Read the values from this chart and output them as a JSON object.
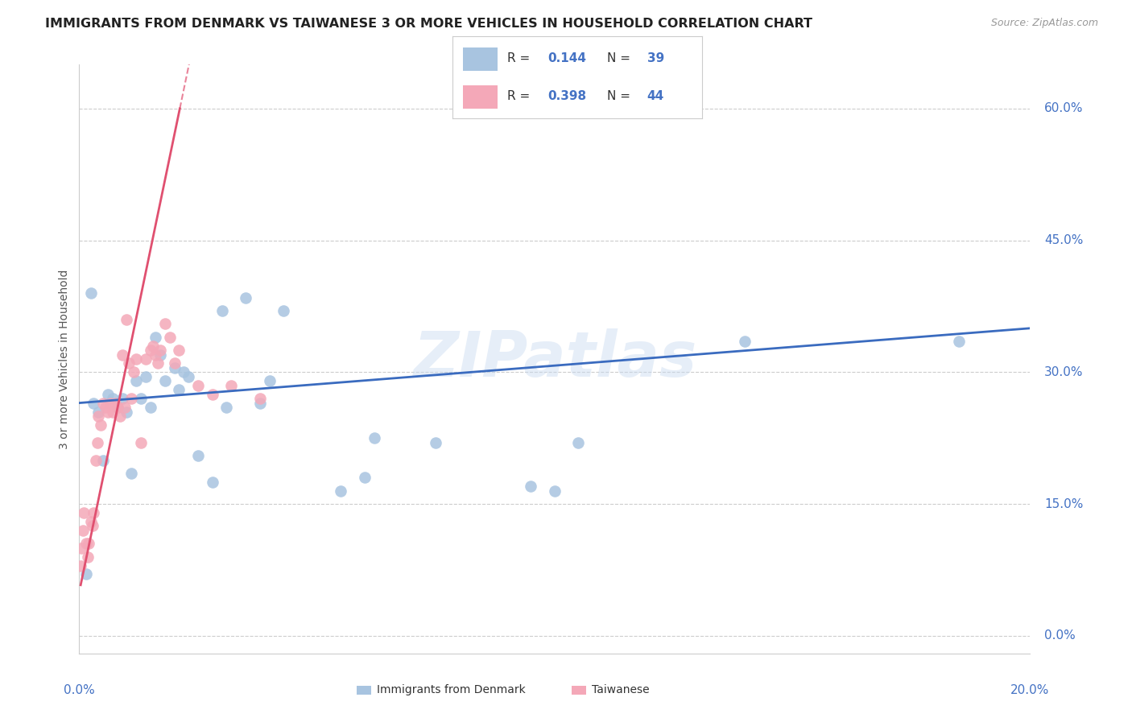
{
  "title": "IMMIGRANTS FROM DENMARK VS TAIWANESE 3 OR MORE VEHICLES IN HOUSEHOLD CORRELATION CHART",
  "source": "Source: ZipAtlas.com",
  "ylabel": "3 or more Vehicles in Household",
  "yticks": [
    "0.0%",
    "15.0%",
    "30.0%",
    "45.0%",
    "60.0%"
  ],
  "ytick_vals": [
    0.0,
    15.0,
    30.0,
    45.0,
    60.0
  ],
  "xrange": [
    0.0,
    20.0
  ],
  "yrange": [
    -2.0,
    65.0
  ],
  "watermark": "ZIPatlas",
  "series1_label": "Immigrants from Denmark",
  "series2_label": "Taiwanese",
  "series1_R": "0.144",
  "series1_N": "39",
  "series2_R": "0.398",
  "series2_N": "44",
  "series1_color": "#a8c4e0",
  "series2_color": "#f4a8b8",
  "series1_line_color": "#3a6bbf",
  "series2_line_color": "#e05070",
  "series1_x": [
    0.15,
    0.3,
    0.4,
    0.5,
    0.6,
    0.7,
    0.8,
    0.9,
    1.0,
    1.1,
    1.2,
    1.3,
    1.4,
    1.5,
    1.6,
    1.7,
    1.8,
    2.0,
    2.1,
    2.2,
    2.3,
    2.5,
    2.8,
    3.0,
    3.1,
    3.5,
    3.8,
    4.0,
    4.3,
    5.5,
    6.0,
    6.2,
    7.5,
    9.5,
    10.0,
    10.5,
    14.0,
    18.5,
    0.25
  ],
  "series1_y": [
    7.0,
    26.5,
    25.5,
    20.0,
    27.5,
    27.0,
    26.0,
    27.0,
    25.5,
    18.5,
    29.0,
    27.0,
    29.5,
    26.0,
    34.0,
    32.0,
    29.0,
    30.5,
    28.0,
    30.0,
    29.5,
    20.5,
    17.5,
    37.0,
    26.0,
    38.5,
    26.5,
    29.0,
    37.0,
    16.5,
    18.0,
    22.5,
    22.0,
    17.0,
    16.5,
    22.0,
    33.5,
    33.5,
    39.0
  ],
  "series2_x": [
    0.05,
    0.08,
    0.1,
    0.15,
    0.18,
    0.2,
    0.25,
    0.28,
    0.3,
    0.35,
    0.38,
    0.4,
    0.45,
    0.5,
    0.55,
    0.6,
    0.65,
    0.7,
    0.75,
    0.8,
    0.85,
    0.9,
    0.95,
    1.0,
    1.05,
    1.1,
    1.15,
    1.2,
    1.3,
    1.4,
    1.5,
    1.55,
    1.6,
    1.65,
    1.7,
    1.8,
    1.9,
    2.0,
    2.1,
    2.5,
    2.8,
    3.2,
    3.8,
    0.03
  ],
  "series2_y": [
    10.0,
    12.0,
    14.0,
    10.5,
    9.0,
    10.5,
    13.0,
    12.5,
    14.0,
    20.0,
    22.0,
    25.0,
    24.0,
    26.5,
    26.0,
    25.5,
    26.5,
    25.5,
    26.5,
    26.0,
    25.0,
    32.0,
    26.0,
    36.0,
    31.0,
    27.0,
    30.0,
    31.5,
    22.0,
    31.5,
    32.5,
    33.0,
    32.0,
    31.0,
    32.5,
    35.5,
    34.0,
    31.0,
    32.5,
    28.5,
    27.5,
    28.5,
    27.0,
    8.0
  ]
}
